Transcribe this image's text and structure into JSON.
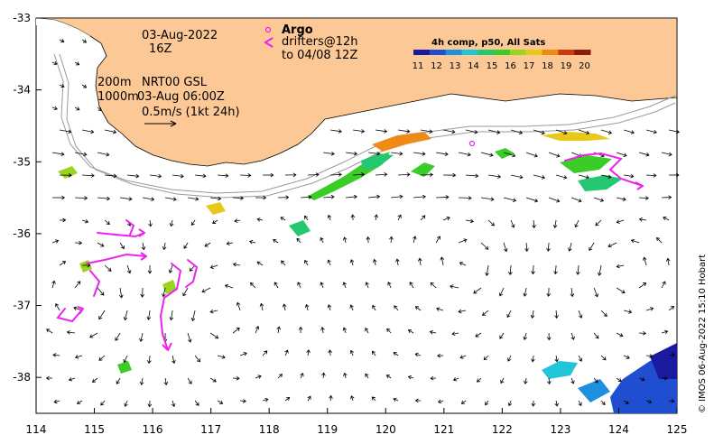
{
  "map": {
    "lon_ticks": [
      "114",
      "115",
      "116",
      "117",
      "118",
      "119",
      "120",
      "121",
      "122",
      "123",
      "124",
      "125"
    ],
    "lat_ticks": [
      "-33",
      "-34",
      "-35",
      "-36",
      "-37",
      "-38"
    ],
    "lon_range": [
      114,
      125
    ],
    "lat_range": [
      -38.5,
      -33
    ]
  },
  "annotations": {
    "date": "03-Aug-2022",
    "hour": "16Z",
    "contour_200": "200m",
    "contour_1000": "1000m",
    "product": "NRT00 GSL",
    "product_time": "03-Aug 06:00Z",
    "scale_label": "0.5m/s (1kt 24h)"
  },
  "argo": {
    "title": "Argo",
    "drifters": "drifters@12h",
    "to": "to 04/08 12Z"
  },
  "colorbar": {
    "title": "4h comp, p50, All Sats",
    "ticks": [
      "11",
      "12",
      "13",
      "14",
      "15",
      "16",
      "17",
      "18",
      "19",
      "20"
    ],
    "colors": [
      "#1a1aa0",
      "#1f4fd0",
      "#1f8fe0",
      "#22c4d8",
      "#25c870",
      "#3ccc28",
      "#9ad41c",
      "#e8c818",
      "#ee8a16",
      "#cc3a12",
      "#8a1a0c"
    ]
  },
  "credit": "© IMOS 06-Aug-2022 15:10 Hobart",
  "colors": {
    "land": "#fbc896",
    "drifter": "#ee22ee",
    "argo": "#ee22ee"
  }
}
